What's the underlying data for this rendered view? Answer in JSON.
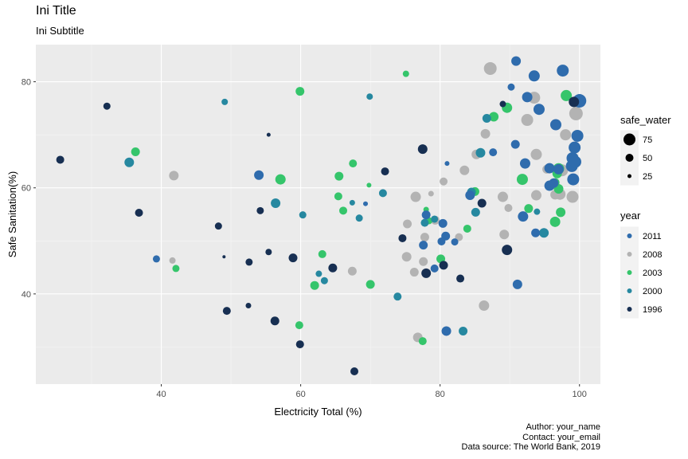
{
  "header": {
    "title": "Ini Title",
    "subtitle": "Ini Subtitle"
  },
  "caption": {
    "author": "Author: your_name",
    "contact": "Contact: your_email",
    "source": "Data source: The World Bank, 2019"
  },
  "colors": {
    "panel": "#ebebeb",
    "grid_major": "#ffffff",
    "grid_minor": "#f5f5f5",
    "axis_text": "#4d4d4d",
    "legend_key_bg": "#f2f2f2"
  },
  "chart_data": {
    "type": "scatter",
    "xlabel": "Electricity Total (%)",
    "ylabel": "Safe Sanitation(%)",
    "xlim": [
      22,
      103
    ],
    "ylim": [
      23,
      87
    ],
    "x_ticks": [
      40,
      60,
      80,
      100
    ],
    "y_ticks": [
      40,
      60,
      80
    ],
    "grid": true,
    "legend_position": "right",
    "size_legend": {
      "title": "safe_water",
      "entries": [
        {
          "label": "75",
          "value": 75
        },
        {
          "label": "50",
          "value": 50
        },
        {
          "label": "25",
          "value": 25
        }
      ]
    },
    "color_legend": {
      "title": "year",
      "entries": [
        {
          "label": "2011",
          "color": "#2f6cad"
        },
        {
          "label": "2008",
          "color": "#b3b3b3"
        },
        {
          "label": "2003",
          "color": "#35c56b"
        },
        {
          "label": "2000",
          "color": "#2688a0"
        },
        {
          "label": "1996",
          "color": "#172f52"
        }
      ]
    },
    "series": [
      {
        "key": "2008",
        "color": "#b3b3b3",
        "points": [
          [
            87.2,
            82.5,
            80
          ],
          [
            93.5,
            77,
            75
          ],
          [
            92.5,
            72.8,
            75
          ],
          [
            99.5,
            74,
            85
          ],
          [
            86.5,
            70.2,
            60
          ],
          [
            98,
            70,
            70
          ],
          [
            93.8,
            66.3,
            70
          ],
          [
            85.2,
            66.3,
            60
          ],
          [
            83.5,
            63.3,
            60
          ],
          [
            80.5,
            61.2,
            50
          ],
          [
            41.8,
            62.3,
            60
          ],
          [
            76.5,
            58.3,
            65
          ],
          [
            78.7,
            58.9,
            35
          ],
          [
            89,
            58.3,
            65
          ],
          [
            93.8,
            58.6,
            65
          ],
          [
            97.2,
            58.8,
            70
          ],
          [
            99,
            58.3,
            75
          ],
          [
            97.5,
            63.3,
            75
          ],
          [
            89.8,
            56.2,
            50
          ],
          [
            75.3,
            53.2,
            55
          ],
          [
            79.3,
            53.9,
            55
          ],
          [
            77.8,
            50.7,
            55
          ],
          [
            82.7,
            50.7,
            50
          ],
          [
            89.2,
            51.2,
            60
          ],
          [
            96.5,
            58.7,
            60
          ],
          [
            75.2,
            47,
            60
          ],
          [
            77.6,
            46.1,
            55
          ],
          [
            76.3,
            44.1,
            55
          ],
          [
            41.6,
            46.3,
            40
          ],
          [
            67.4,
            44.3,
            55
          ],
          [
            86.3,
            37.8,
            65
          ],
          [
            76.8,
            31.8,
            60
          ],
          [
            95.3,
            63.5,
            55
          ]
        ]
      },
      {
        "key": "2003",
        "color": "#35c56b",
        "points": [
          [
            75.1,
            81.5,
            40
          ],
          [
            59.9,
            78.2,
            55
          ],
          [
            98.1,
            77.4,
            70
          ],
          [
            89.6,
            75.1,
            65
          ],
          [
            87.7,
            73.4,
            60
          ],
          [
            36.3,
            66.8,
            55
          ],
          [
            97,
            63.6,
            70
          ],
          [
            57.1,
            61.6,
            65
          ],
          [
            65.5,
            62.2,
            55
          ],
          [
            67.5,
            64.6,
            50
          ],
          [
            91.8,
            61.6,
            70
          ],
          [
            96.8,
            62.7,
            60
          ],
          [
            97,
            59.8,
            60
          ],
          [
            65.4,
            58.4,
            50
          ],
          [
            69.8,
            60.5,
            30
          ],
          [
            85,
            59.3,
            55
          ],
          [
            78,
            55.9,
            35
          ],
          [
            97.3,
            55.4,
            60
          ],
          [
            92.7,
            56.1,
            55
          ],
          [
            96.5,
            53.6,
            65
          ],
          [
            66.1,
            55.7,
            50
          ],
          [
            78.4,
            53.8,
            45
          ],
          [
            83.9,
            52.3,
            50
          ],
          [
            63.1,
            47.5,
            50
          ],
          [
            80.1,
            46.6,
            55
          ],
          [
            42.1,
            44.8,
            45
          ],
          [
            62,
            41.6,
            55
          ],
          [
            70,
            41.8,
            55
          ],
          [
            59.8,
            34.1,
            50
          ],
          [
            77.5,
            31.1,
            50
          ],
          [
            96.5,
            61,
            55
          ]
        ]
      },
      {
        "key": "2000",
        "color": "#2688a0",
        "points": [
          [
            49.1,
            76.2,
            40
          ],
          [
            69.9,
            77.2,
            40
          ],
          [
            86.7,
            73.1,
            55
          ],
          [
            35.4,
            64.8,
            60
          ],
          [
            56.4,
            57.1,
            60
          ],
          [
            71.8,
            59,
            50
          ],
          [
            60.3,
            54.9,
            45
          ],
          [
            68.4,
            54.3,
            45
          ],
          [
            85.1,
            55.4,
            55
          ],
          [
            84.5,
            59.2,
            55
          ],
          [
            93.9,
            55.5,
            40
          ],
          [
            94.9,
            51.5,
            60
          ],
          [
            85.8,
            66.6,
            60
          ],
          [
            62.6,
            43.8,
            40
          ],
          [
            63.4,
            42.5,
            45
          ],
          [
            73.9,
            39.5,
            50
          ],
          [
            79.2,
            54.1,
            45
          ],
          [
            77.8,
            53.4,
            50
          ],
          [
            83.3,
            33,
            55
          ],
          [
            67.4,
            57.2,
            35
          ]
        ]
      },
      {
        "key": "2011",
        "color": "#2f6cad",
        "points": [
          [
            90.9,
            83.9,
            60
          ],
          [
            97.6,
            82.1,
            75
          ],
          [
            93.5,
            81.1,
            70
          ],
          [
            92.5,
            77.1,
            65
          ],
          [
            100,
            76.4,
            85
          ],
          [
            94.2,
            74.8,
            70
          ],
          [
            96.6,
            71.9,
            70
          ],
          [
            99.7,
            69.8,
            75
          ],
          [
            99.3,
            67.6,
            75
          ],
          [
            90.8,
            68.2,
            55
          ],
          [
            87.6,
            66.7,
            50
          ],
          [
            99,
            65.6,
            75
          ],
          [
            98.9,
            64.1,
            75
          ],
          [
            92.2,
            64.6,
            65
          ],
          [
            95.7,
            63.7,
            65
          ],
          [
            97,
            63.5,
            65
          ],
          [
            99.4,
            64.9,
            75
          ],
          [
            99.1,
            61.6,
            75
          ],
          [
            95.7,
            60.4,
            65
          ],
          [
            96.3,
            60.9,
            60
          ],
          [
            84.3,
            58.6,
            60
          ],
          [
            91.9,
            54.6,
            65
          ],
          [
            93.7,
            51.5,
            55
          ],
          [
            78,
            54.9,
            55
          ],
          [
            80.4,
            53.3,
            55
          ],
          [
            80.8,
            50.9,
            55
          ],
          [
            80.2,
            49.9,
            50
          ],
          [
            77.6,
            49.2,
            55
          ],
          [
            82.1,
            49.8,
            45
          ],
          [
            54,
            62.4,
            60
          ],
          [
            39.3,
            46.6,
            45
          ],
          [
            79.2,
            44.8,
            50
          ],
          [
            91.1,
            41.8,
            60
          ],
          [
            80.9,
            33,
            60
          ],
          [
            81,
            64.6,
            30
          ],
          [
            69.3,
            57,
            30
          ],
          [
            90.2,
            79,
            45
          ]
        ]
      },
      {
        "key": "1996",
        "color": "#172f52",
        "points": [
          [
            32.2,
            75.4,
            45
          ],
          [
            25.5,
            65.3,
            50
          ],
          [
            55.4,
            70,
            25
          ],
          [
            77.5,
            67.3,
            60
          ],
          [
            72.1,
            63.1,
            50
          ],
          [
            36.8,
            55.3,
            50
          ],
          [
            54.2,
            55.7,
            45
          ],
          [
            48.2,
            52.8,
            45
          ],
          [
            74.6,
            50.5,
            50
          ],
          [
            49,
            47,
            20
          ],
          [
            52.6,
            46,
            45
          ],
          [
            55.4,
            47.9,
            40
          ],
          [
            58.9,
            46.8,
            55
          ],
          [
            64.6,
            44.9,
            55
          ],
          [
            80.5,
            45.4,
            55
          ],
          [
            78,
            43.9,
            60
          ],
          [
            82.9,
            42.9,
            50
          ],
          [
            89.6,
            48.3,
            65
          ],
          [
            86,
            57.1,
            55
          ],
          [
            49.4,
            36.8,
            50
          ],
          [
            52.5,
            37.8,
            35
          ],
          [
            56.3,
            34.9,
            55
          ],
          [
            59.9,
            30.5,
            50
          ],
          [
            67.7,
            25.4,
            50
          ],
          [
            99.2,
            76.2,
            65
          ],
          [
            89,
            75.8,
            40
          ]
        ]
      }
    ]
  }
}
